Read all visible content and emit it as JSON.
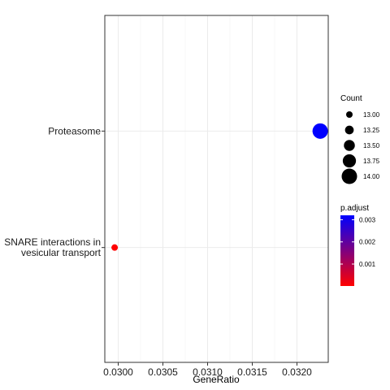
{
  "chart_data": {
    "type": "scatter",
    "xlabel": "GeneRatio",
    "ylabel": "",
    "xlim": [
      0.02985,
      0.03235
    ],
    "x_ticks": [
      "0.0300",
      "0.0305",
      "0.0310",
      "0.0315",
      "0.0320"
    ],
    "x_tick_values": [
      0.03,
      0.0305,
      0.031,
      0.0315,
      0.032
    ],
    "categories": [
      [
        "SNARE interactions in",
        "vesicular transport"
      ],
      [
        "Proteasome"
      ]
    ],
    "points": [
      {
        "category_index": 1,
        "x": 0.03226,
        "count": 14,
        "p_adjust": 0.0032,
        "color": "#0000ff"
      },
      {
        "category_index": 0,
        "x": 0.02996,
        "count": 13,
        "p_adjust": 1e-05,
        "color": "#ff0000"
      }
    ],
    "grid": true,
    "size_legend": {
      "title": "Count",
      "entries": [
        {
          "label": "13.00",
          "value": 13.0
        },
        {
          "label": "13.25",
          "value": 13.25
        },
        {
          "label": "13.50",
          "value": 13.5
        },
        {
          "label": "13.75",
          "value": 13.75
        },
        {
          "label": "14.00",
          "value": 14.0
        }
      ]
    },
    "color_legend": {
      "title": "p.adjust",
      "range": [
        1e-05,
        0.0032
      ],
      "low_color": "#ff0000",
      "high_color": "#0000ff",
      "ticks": [
        {
          "label": "0.003",
          "value": 0.003
        },
        {
          "label": "0.002",
          "value": 0.002
        },
        {
          "label": "0.001",
          "value": 0.001
        }
      ]
    },
    "legend_position": "right"
  }
}
